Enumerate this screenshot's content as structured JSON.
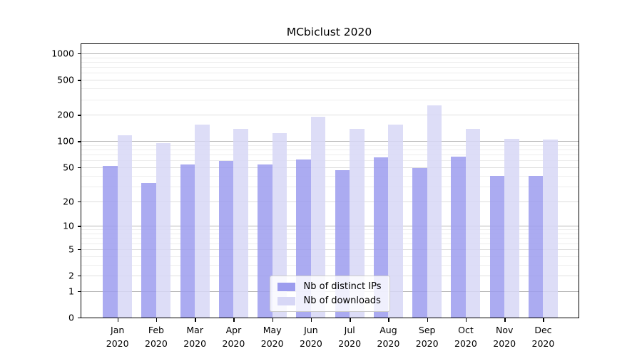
{
  "chart_data": {
    "type": "bar",
    "title": "MCbiclust 2020",
    "categories": [
      "Jan",
      "Feb",
      "Mar",
      "Apr",
      "May",
      "Jun",
      "Jul",
      "Aug",
      "Sep",
      "Oct",
      "Nov",
      "Dec"
    ],
    "year": "2020",
    "series": [
      {
        "name": "Nb of distinct IPs",
        "color": "#9c9cee",
        "values": [
          52,
          33,
          54,
          59,
          54,
          62,
          46,
          65,
          49,
          66,
          40,
          40
        ]
      },
      {
        "name": "Nb of downloads",
        "color": "#d7d7f6",
        "values": [
          116,
          95,
          155,
          138,
          123,
          189,
          137,
          155,
          258,
          139,
          107,
          105
        ]
      }
    ],
    "y_scale": "log1p",
    "ylim": [
      0,
      1250
    ],
    "y_ticks": [
      0,
      1,
      2,
      5,
      10,
      20,
      50,
      100,
      200,
      500,
      1000
    ],
    "y_minor_ticks": [
      3,
      4,
      6,
      7,
      8,
      9,
      30,
      40,
      60,
      70,
      80,
      90,
      300,
      400,
      600,
      700,
      800,
      900
    ],
    "grid": true,
    "legend_position": "lower center",
    "xlabel": "",
    "ylabel": ""
  }
}
